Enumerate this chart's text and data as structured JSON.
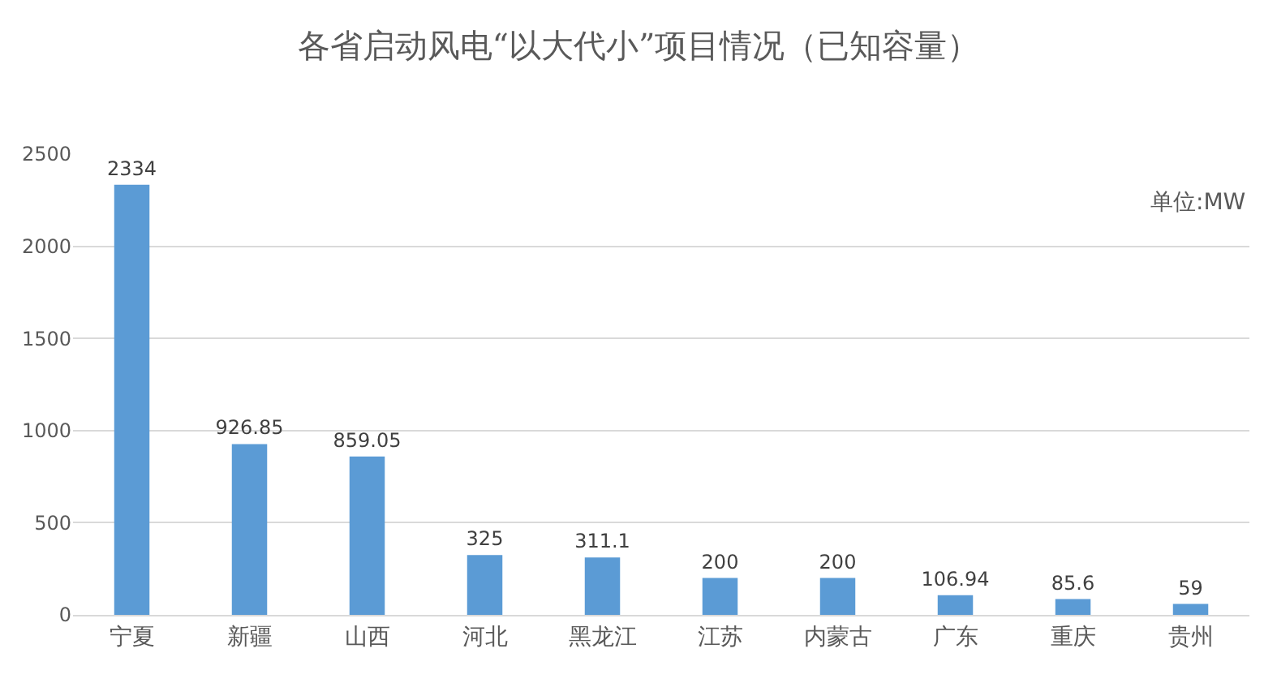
{
  "chart_data": {
    "type": "bar",
    "title": "各省启动风电“以大代小”项目情况（已知容量）",
    "categories": [
      "宁夏",
      "新疆",
      "山西",
      "河北",
      "黑龙江",
      "江苏",
      "内蒙古",
      "广东",
      "重庆",
      "贵州"
    ],
    "values": [
      2334,
      926.85,
      859.05,
      325,
      311.1,
      200,
      200,
      106.94,
      85.6,
      59
    ],
    "color": "#5b9bd5",
    "ylim": [
      0,
      2500
    ],
    "yticks": [
      0,
      500,
      1000,
      1500,
      2000,
      2500
    ],
    "grid": "y",
    "data_labels": true,
    "legend": false,
    "annotations": [
      "单位:MW"
    ]
  }
}
